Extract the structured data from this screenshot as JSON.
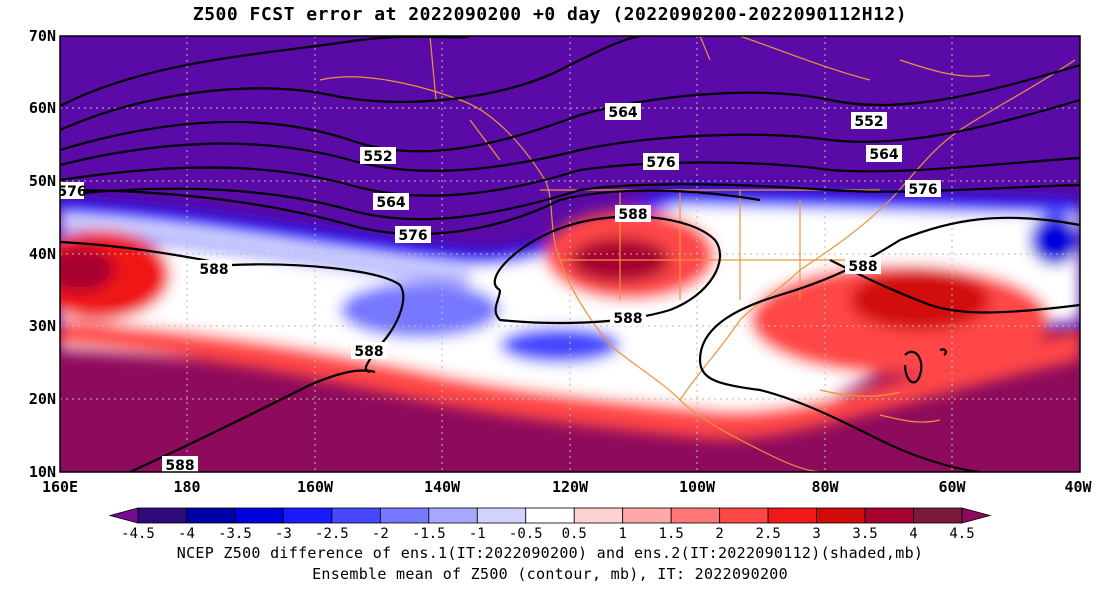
{
  "title": "Z500 FCST error at 2022090200 +0 day (2022090200-2022090112H12)",
  "captions": [
    "NCEP Z500 difference of ens.1(IT:2022090200) and ens.2(IT:2022090112)(shaded,mb)",
    "Ensemble mean of Z500 (contour, mb), IT: 2022090200"
  ],
  "map": {
    "lon_labels": [
      "160E",
      "180",
      "160W",
      "140W",
      "120W",
      "100W",
      "80W",
      "60W",
      "40W"
    ],
    "lat_labels": [
      "10N",
      "20N",
      "30N",
      "40N",
      "50N",
      "60N",
      "70N"
    ]
  },
  "colorbar": {
    "labels": [
      "-4.5",
      "-4",
      "-3.5",
      "-3",
      "-2.5",
      "-2",
      "-1.5",
      "-1",
      "-0.5",
      "0.5",
      "1",
      "1.5",
      "2",
      "2.5",
      "3",
      "3.5",
      "4",
      "4.5"
    ],
    "colors": [
      "#7a0a96",
      "#2e0a78",
      "#0000a8",
      "#0000dd",
      "#1a1aff",
      "#4747ff",
      "#7777ff",
      "#a7a7ff",
      "#d2d2ff",
      "#ffffff",
      "#ffd2d2",
      "#ffa8a8",
      "#ff7777",
      "#ff4747",
      "#f01818",
      "#d10a0a",
      "#a80030",
      "#7a1a3a",
      "#8e0a5c"
    ]
  },
  "contour_labels": [
    "552",
    "564",
    "576",
    "552",
    "564",
    "576",
    "564",
    "576",
    "588",
    "588",
    "552",
    "564",
    "576",
    "588",
    "588",
    "588",
    "588",
    "588"
  ],
  "colors": {
    "land_outline": "#e8963c",
    "negative": "#5a0aa6",
    "positive": "#8e0a5c"
  }
}
